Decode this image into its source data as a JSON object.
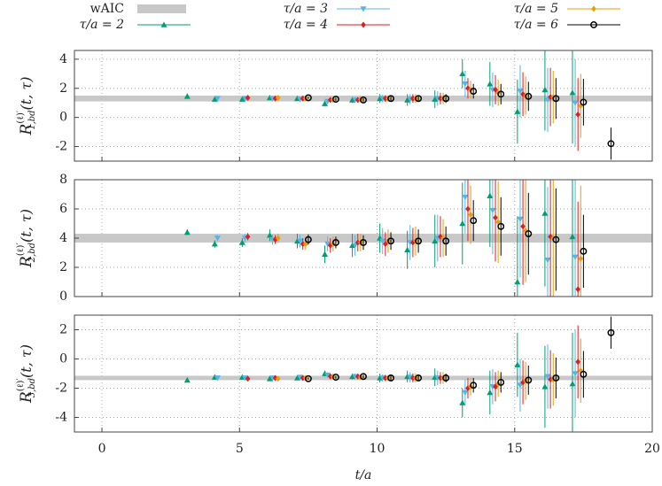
{
  "chart_data": [
    {
      "type": "scatter",
      "grid": true,
      "y_label": {
        "main": "R",
        "sup": "(ℓ)′",
        "sub": "1,bd",
        "args": "(t, τ)"
      },
      "xlim": [
        -1,
        20
      ],
      "xticks": [
        0,
        5,
        10,
        15,
        20
      ],
      "ylim": [
        -3,
        4.6
      ],
      "yticks": [
        -2,
        0,
        2,
        4
      ],
      "band": {
        "name": "wAIC",
        "color": "#c8c8c8",
        "value": 1.3,
        "error": 0.2
      },
      "series": [
        {
          "name": "τ/a = 2",
          "color": "#009e73",
          "marker": "triangle",
          "x": [
            3.1,
            4.1,
            5.1,
            6.1,
            7.1,
            8.1,
            9.1,
            10.1,
            11.1,
            12.1,
            13.1,
            14.1,
            15.1,
            16.1,
            17.1
          ],
          "values": [
            1.45,
            1.25,
            1.25,
            1.35,
            1.3,
            0.95,
            1.2,
            1.3,
            1.2,
            1.25,
            3.0,
            2.3,
            0.4,
            1.9,
            1.7
          ],
          "errors": [
            0.05,
            0.05,
            0.07,
            0.1,
            0.15,
            0.2,
            0.2,
            0.3,
            0.4,
            0.6,
            1.0,
            1.5,
            2.2,
            2.8,
            3.5
          ]
        },
        {
          "name": "τ/a = 3",
          "color": "#56b4e9",
          "marker": "triangle-down",
          "x": [
            4.2,
            5.2,
            6.2,
            7.2,
            8.2,
            9.2,
            10.2,
            11.2,
            12.2,
            13.2,
            14.2,
            15.2,
            16.2,
            17.2
          ],
          "values": [
            1.3,
            1.3,
            1.3,
            1.25,
            1.1,
            1.2,
            1.3,
            1.25,
            1.3,
            2.3,
            1.9,
            1.8,
            1.2,
            1.0
          ],
          "errors": [
            0.05,
            0.06,
            0.08,
            0.12,
            0.15,
            0.2,
            0.25,
            0.35,
            0.5,
            0.9,
            1.2,
            1.8,
            2.2,
            3.0
          ]
        },
        {
          "name": "τ/a = 4",
          "color": "#e41a1c",
          "marker": "diamond",
          "x": [
            5.3,
            6.3,
            7.3,
            8.3,
            9.3,
            10.3,
            11.3,
            12.3,
            13.3,
            14.3,
            15.3,
            16.3,
            17.3
          ],
          "values": [
            1.35,
            1.3,
            1.3,
            1.2,
            1.2,
            1.3,
            1.3,
            1.3,
            2.0,
            1.9,
            1.6,
            1.4,
            0.2
          ],
          "errors": [
            0.05,
            0.07,
            0.1,
            0.12,
            0.18,
            0.22,
            0.3,
            0.4,
            0.7,
            1.0,
            1.5,
            2.0,
            2.5
          ]
        },
        {
          "name": "τ/a = 5",
          "color": "#e69f00",
          "marker": "diamond",
          "x": [
            6.4,
            7.4,
            8.4,
            9.4,
            10.4,
            11.4,
            12.4,
            13.4,
            14.4,
            15.4,
            16.4,
            17.4
          ],
          "values": [
            1.35,
            1.3,
            1.2,
            1.25,
            1.3,
            1.3,
            1.3,
            1.9,
            1.7,
            1.5,
            1.4,
            0.8
          ],
          "errors": [
            0.06,
            0.08,
            0.12,
            0.15,
            0.2,
            0.3,
            0.4,
            0.6,
            0.9,
            1.3,
            1.8,
            2.2
          ]
        },
        {
          "name": "τ/a = 6",
          "color": "#000000",
          "marker": "circle",
          "x": [
            7.5,
            8.5,
            9.5,
            10.5,
            11.5,
            12.5,
            13.5,
            14.5,
            15.5,
            16.5,
            17.5,
            18.5
          ],
          "values": [
            1.35,
            1.25,
            1.2,
            1.3,
            1.3,
            1.3,
            1.8,
            1.6,
            1.45,
            1.3,
            1.05,
            -1.8
          ],
          "errors": [
            0.07,
            0.1,
            0.12,
            0.15,
            0.2,
            0.3,
            0.5,
            0.7,
            1.0,
            1.4,
            1.6,
            1.1
          ]
        }
      ]
    },
    {
      "type": "scatter",
      "grid": true,
      "y_label": {
        "main": "R",
        "sup": "(ℓ)′",
        "sub": "2,bd",
        "args": "(t, τ)"
      },
      "xlim": [
        -1,
        20
      ],
      "xticks": [
        0,
        5,
        10,
        15,
        20
      ],
      "ylim": [
        0,
        8
      ],
      "yticks": [
        0,
        2,
        4,
        6,
        8
      ],
      "band": {
        "color": "#c8c8c8",
        "value": 4.0,
        "error": 0.3
      },
      "series": [
        {
          "color": "#009e73",
          "marker": "triangle",
          "x": [
            3.1,
            4.1,
            5.1,
            6.1,
            7.1,
            8.1,
            9.1,
            10.1,
            11.1,
            12.1,
            13.1,
            14.1,
            15.1,
            16.1,
            17.1
          ],
          "values": [
            4.4,
            3.6,
            3.7,
            4.2,
            3.8,
            2.9,
            3.5,
            4.0,
            3.2,
            3.8,
            5.0,
            6.9,
            1.0,
            5.7,
            4.1
          ],
          "errors": [
            0.2,
            0.25,
            0.3,
            0.4,
            0.5,
            0.6,
            0.8,
            1.0,
            1.3,
            1.8,
            2.8,
            3.5,
            4.5,
            5,
            6
          ]
        },
        {
          "color": "#56b4e9",
          "marker": "triangle-down",
          "x": [
            4.2,
            5.2,
            6.2,
            7.2,
            8.2,
            9.2,
            10.2,
            11.2,
            12.2,
            13.2,
            14.2,
            15.2,
            16.2,
            17.2
          ],
          "values": [
            4.0,
            4.0,
            3.9,
            3.8,
            3.6,
            3.5,
            3.8,
            3.7,
            4.0,
            6.8,
            5.9,
            5.3,
            2.5,
            2.7
          ],
          "errors": [
            0.2,
            0.3,
            0.35,
            0.45,
            0.5,
            0.7,
            0.9,
            1.2,
            1.6,
            2.5,
            3,
            4,
            5,
            6
          ]
        },
        {
          "color": "#e41a1c",
          "marker": "diamond",
          "x": [
            5.3,
            6.3,
            7.3,
            8.3,
            9.3,
            10.3,
            11.3,
            12.3,
            13.3,
            14.3,
            15.3,
            16.3,
            17.3
          ],
          "values": [
            4.1,
            3.9,
            3.6,
            3.5,
            3.7,
            3.6,
            3.7,
            4.1,
            6.0,
            5.4,
            4.8,
            4.1,
            0.5
          ],
          "errors": [
            0.25,
            0.3,
            0.4,
            0.5,
            0.6,
            0.8,
            1.0,
            1.4,
            2.2,
            3,
            4,
            5,
            6
          ]
        },
        {
          "color": "#e69f00",
          "marker": "diamond",
          "x": [
            6.4,
            7.4,
            8.4,
            9.4,
            10.4,
            11.4,
            12.4,
            13.4,
            14.4,
            15.4,
            16.4,
            17.4
          ],
          "values": [
            4.0,
            3.6,
            3.6,
            3.7,
            3.8,
            3.8,
            4.0,
            5.6,
            5.1,
            4.5,
            4.0,
            2.6
          ],
          "errors": [
            0.3,
            0.4,
            0.5,
            0.6,
            0.8,
            1.0,
            1.3,
            2,
            2.8,
            3.5,
            4.5,
            5
          ]
        },
        {
          "color": "#000000",
          "marker": "circle",
          "x": [
            7.5,
            8.5,
            9.5,
            10.5,
            11.5,
            12.5,
            13.5,
            14.5,
            15.5,
            16.5,
            17.5
          ],
          "values": [
            3.9,
            3.7,
            3.7,
            3.8,
            3.8,
            3.8,
            5.2,
            4.8,
            4.3,
            3.9,
            3.1
          ],
          "errors": [
            0.35,
            0.4,
            0.5,
            0.6,
            0.8,
            1.0,
            1.4,
            2,
            2.8,
            3.5,
            2.5
          ]
        }
      ]
    },
    {
      "type": "scatter",
      "grid": true,
      "y_label": {
        "main": "R",
        "sup": "(ℓ)′",
        "sub": "3,bd",
        "args": "(t, τ)"
      },
      "x_label": "t/a",
      "xlim": [
        -1,
        20
      ],
      "xticks": [
        0,
        5,
        10,
        15,
        20
      ],
      "ylim": [
        -5,
        3
      ],
      "yticks": [
        -4,
        -2,
        0,
        2
      ],
      "band": {
        "color": "#c8c8c8",
        "value": -1.3,
        "error": 0.15
      },
      "series": [
        {
          "color": "#009e73",
          "marker": "triangle",
          "x": [
            3.1,
            4.1,
            5.1,
            6.1,
            7.1,
            8.1,
            9.1,
            10.1,
            11.1,
            12.1,
            13.1,
            14.1,
            15.1,
            16.1,
            17.1
          ],
          "values": [
            -1.45,
            -1.25,
            -1.25,
            -1.35,
            -1.3,
            -1.0,
            -1.2,
            -1.3,
            -1.2,
            -1.25,
            -3.0,
            -2.3,
            -0.4,
            -1.9,
            -1.7
          ],
          "errors": [
            0.05,
            0.05,
            0.07,
            0.1,
            0.15,
            0.2,
            0.2,
            0.3,
            0.4,
            0.6,
            1.0,
            1.5,
            2.2,
            2.8,
            3.5
          ]
        },
        {
          "color": "#56b4e9",
          "marker": "triangle-down",
          "x": [
            4.2,
            5.2,
            6.2,
            7.2,
            8.2,
            9.2,
            10.2,
            11.2,
            12.2,
            13.2,
            14.2,
            15.2,
            16.2,
            17.2
          ],
          "values": [
            -1.3,
            -1.3,
            -1.3,
            -1.25,
            -1.1,
            -1.2,
            -1.3,
            -1.25,
            -1.3,
            -2.3,
            -1.9,
            -1.8,
            -1.2,
            -1.0
          ],
          "errors": [
            0.05,
            0.06,
            0.08,
            0.12,
            0.15,
            0.2,
            0.25,
            0.35,
            0.5,
            0.9,
            1.2,
            1.8,
            2.2,
            3.0
          ]
        },
        {
          "color": "#e41a1c",
          "marker": "diamond",
          "x": [
            5.3,
            6.3,
            7.3,
            8.3,
            9.3,
            10.3,
            11.3,
            12.3,
            13.3,
            14.3,
            15.3,
            16.3,
            17.3
          ],
          "values": [
            -1.35,
            -1.3,
            -1.3,
            -1.2,
            -1.2,
            -1.3,
            -1.3,
            -1.3,
            -2.0,
            -1.9,
            -1.6,
            -1.4,
            -0.2
          ],
          "errors": [
            0.05,
            0.07,
            0.1,
            0.12,
            0.18,
            0.22,
            0.3,
            0.4,
            0.7,
            1.0,
            1.5,
            2.0,
            2.5
          ]
        },
        {
          "color": "#e69f00",
          "marker": "diamond",
          "x": [
            6.4,
            7.4,
            8.4,
            9.4,
            10.4,
            11.4,
            12.4,
            13.4,
            14.4,
            15.4,
            16.4,
            17.4
          ],
          "values": [
            -1.35,
            -1.3,
            -1.2,
            -1.25,
            -1.3,
            -1.3,
            -1.3,
            -1.9,
            -1.7,
            -1.5,
            -1.4,
            -0.8
          ],
          "errors": [
            0.06,
            0.08,
            0.12,
            0.15,
            0.2,
            0.3,
            0.4,
            0.6,
            0.9,
            1.3,
            1.8,
            2.2
          ]
        },
        {
          "color": "#000000",
          "marker": "circle",
          "x": [
            7.5,
            8.5,
            9.5,
            10.5,
            11.5,
            12.5,
            13.5,
            14.5,
            15.5,
            16.5,
            17.5,
            18.5
          ],
          "values": [
            -1.35,
            -1.25,
            -1.2,
            -1.3,
            -1.3,
            -1.3,
            -1.8,
            -1.6,
            -1.45,
            -1.3,
            -1.05,
            1.8
          ],
          "errors": [
            0.07,
            0.1,
            0.12,
            0.15,
            0.2,
            0.3,
            0.5,
            0.7,
            1.0,
            1.4,
            1.6,
            1.1
          ]
        }
      ]
    }
  ]
}
